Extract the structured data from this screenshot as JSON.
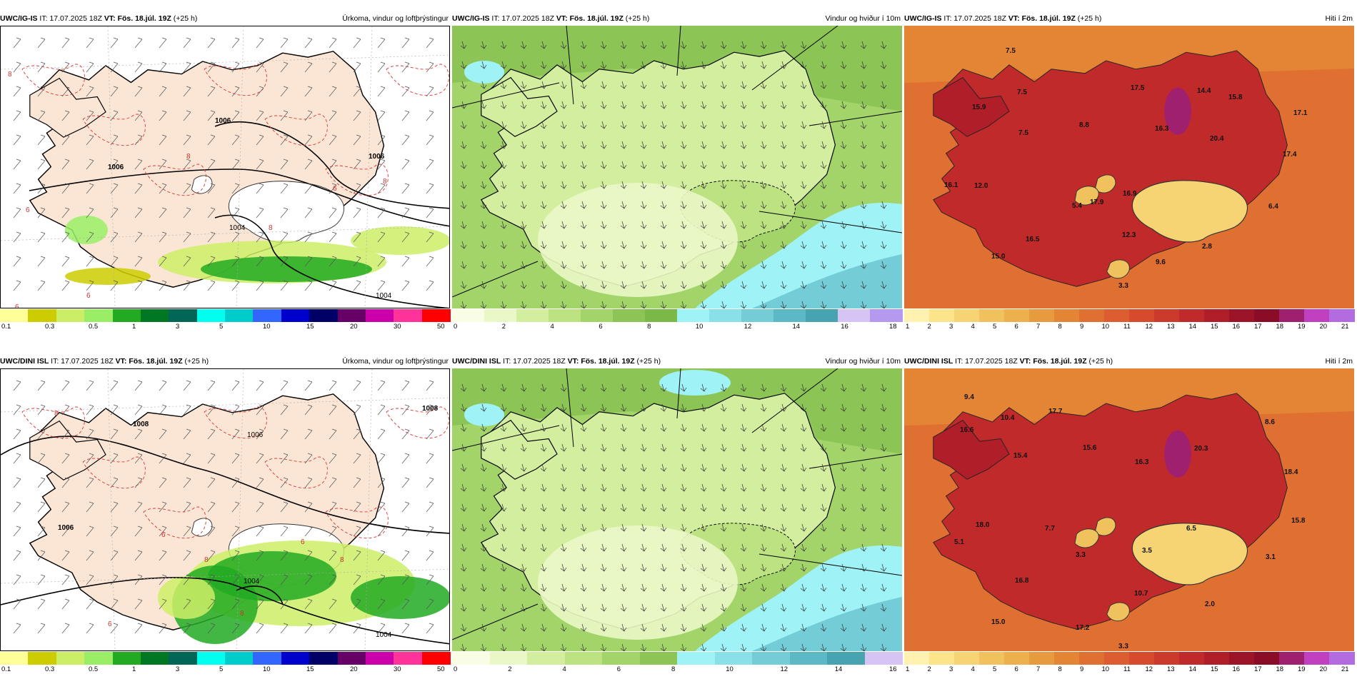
{
  "panels": [
    {
      "id": "p1",
      "model": "UWC/IG-IS",
      "it": "IT: 17.07.2025 18Z",
      "vt": "VT: Fös. 18.júl. 19Z",
      "lead": "(+25 h)",
      "title": "Úrkoma, vindur og loftþrýstingur",
      "kind": "precip",
      "labels": [
        "1006",
        "1006",
        "1006",
        "1004",
        "1004",
        "8",
        "8",
        "8",
        "8",
        "6",
        "6",
        "6",
        "6"
      ],
      "colorbar": {
        "colors": [
          "#ffff99",
          "#cccc00",
          "#ccee66",
          "#99ee66",
          "#22aa22",
          "#007722",
          "#006655",
          "#00ffee",
          "#00cccc",
          "#3366ff",
          "#0000cc",
          "#000066",
          "#660066",
          "#cc00aa",
          "#ff3399",
          "#ff0000"
        ],
        "ticks": [
          "0.1",
          "0.3",
          "0.5",
          "1",
          "3",
          "5",
          "10",
          "15",
          "20",
          "30",
          "50"
        ]
      }
    },
    {
      "id": "p2",
      "model": "UWC/IG-IS",
      "it": "IT: 17.07.2025 18Z",
      "vt": "VT: Fös. 18.júl. 19Z",
      "lead": "(+25 h)",
      "title": "Vindur og hviður í 10m",
      "kind": "wind",
      "labels": [],
      "colorbar": {
        "colors": [
          "#fafde6",
          "#eaf7c6",
          "#d4eea0",
          "#bde282",
          "#a2d46a",
          "#8cc556",
          "#7ab848",
          "#9ff3f7",
          "#8ae0e8",
          "#74ccd6",
          "#5bb8c4",
          "#47a3b0",
          "#d6c4f4",
          "#b599ee"
        ],
        "ticks": [
          "0",
          "2",
          "4",
          "6",
          "8",
          "10",
          "12",
          "14",
          "16",
          "18"
        ]
      }
    },
    {
      "id": "p3",
      "model": "UWC/IG-IS",
      "it": "IT: 17.07.2025 18Z",
      "vt": "VT: Fös. 18.júl. 19Z",
      "lead": "(+25 h)",
      "title": "Hiti í 2m",
      "kind": "temp",
      "labels": [
        "7.5",
        "7.5",
        "15.9",
        "7.5",
        "8.8",
        "17.5",
        "14.4",
        "15.8",
        "16.3",
        "20.4",
        "17.1",
        "17.4",
        "16.1",
        "12.0",
        "5.4",
        "17.9",
        "16.9",
        "6.4",
        "16.5",
        "12.3",
        "2.8",
        "15.0",
        "9.6",
        "3.3"
      ],
      "colorbar": {
        "colors": [
          "#fff2b0",
          "#fbe48a",
          "#f6d474",
          "#f0c25e",
          "#ecb04c",
          "#e89a3e",
          "#e48536",
          "#e07032",
          "#dc5e30",
          "#d64a2e",
          "#cc3a2c",
          "#c02a2a",
          "#b01e2a",
          "#9c1428",
          "#8a0c26",
          "#a02070",
          "#c040c0",
          "#b36be0"
        ],
        "ticks": [
          "1",
          "2",
          "3",
          "4",
          "5",
          "6",
          "7",
          "8",
          "9",
          "10",
          "11",
          "12",
          "13",
          "14",
          "15",
          "16",
          "17",
          "18",
          "19",
          "20",
          "21"
        ]
      }
    },
    {
      "id": "p4",
      "model": "UWC/DINI ISL",
      "it": "IT: 17.07.2025 18Z",
      "vt": "VT: Fös. 18.júl. 19Z",
      "lead": "(+25 h)",
      "title": "Úrkoma, vindur og loftþrýstingur",
      "kind": "precip",
      "labels": [
        "1008",
        "1008",
        "1006",
        "1006",
        "1004",
        "1004",
        "8",
        "8",
        "8",
        "8",
        "6",
        "6",
        "6"
      ],
      "colorbar": {
        "colors": [
          "#ffff99",
          "#cccc00",
          "#ccee66",
          "#99ee66",
          "#22aa22",
          "#007722",
          "#006655",
          "#00ffee",
          "#00cccc",
          "#3366ff",
          "#0000cc",
          "#000066",
          "#660066",
          "#cc00aa",
          "#ff3399",
          "#ff0000"
        ],
        "ticks": [
          "0.1",
          "0.3",
          "0.5",
          "1",
          "3",
          "5",
          "10",
          "15",
          "20",
          "30",
          "50"
        ]
      }
    },
    {
      "id": "p5",
      "model": "UWC/DINI ISL",
      "it": "IT: 17.07.2025 18Z",
      "vt": "VT: Fös. 18.júl. 19Z",
      "lead": "(+25 h)",
      "title": "Vindur og hviður í 10m",
      "kind": "wind",
      "labels": [],
      "colorbar": {
        "colors": [
          "#fafde6",
          "#eaf7c6",
          "#d4eea0",
          "#bde282",
          "#a2d46a",
          "#8cc556",
          "#9ff3f7",
          "#8ae0e8",
          "#74ccd6",
          "#5bb8c4",
          "#47a3b0",
          "#d6c4f4"
        ],
        "ticks": [
          "0",
          "2",
          "4",
          "6",
          "8",
          "10",
          "12",
          "14",
          "16"
        ]
      }
    },
    {
      "id": "p6",
      "model": "UWC/DINI ISL",
      "it": "IT: 17.07.2025 18Z",
      "vt": "VT: Fös. 18.júl. 19Z",
      "lead": "(+25 h)",
      "title": "Hiti í 2m",
      "kind": "temp",
      "labels": [
        "9.4",
        "10.4",
        "17.7",
        "8.6",
        "16.6",
        "15.4",
        "15.6",
        "16.3",
        "20.3",
        "18.4",
        "18.0",
        "7.7",
        "6.5",
        "15.8",
        "5.1",
        "3.3",
        "3.5",
        "3.1",
        "16.8",
        "10.7",
        "2.0",
        "15.0",
        "17.2",
        "3.3"
      ],
      "colorbar": {
        "colors": [
          "#fff2b0",
          "#fbe48a",
          "#f6d474",
          "#f0c25e",
          "#ecb04c",
          "#e89a3e",
          "#e48536",
          "#e07032",
          "#dc5e30",
          "#d64a2e",
          "#cc3a2c",
          "#c02a2a",
          "#b01e2a",
          "#9c1428",
          "#8a0c26",
          "#a02070",
          "#c040c0",
          "#b36be0"
        ],
        "ticks": [
          "1",
          "2",
          "3",
          "4",
          "5",
          "6",
          "7",
          "8",
          "9",
          "10",
          "11",
          "12",
          "13",
          "14",
          "15",
          "16",
          "17",
          "18",
          "19",
          "20",
          "21"
        ]
      }
    }
  ]
}
